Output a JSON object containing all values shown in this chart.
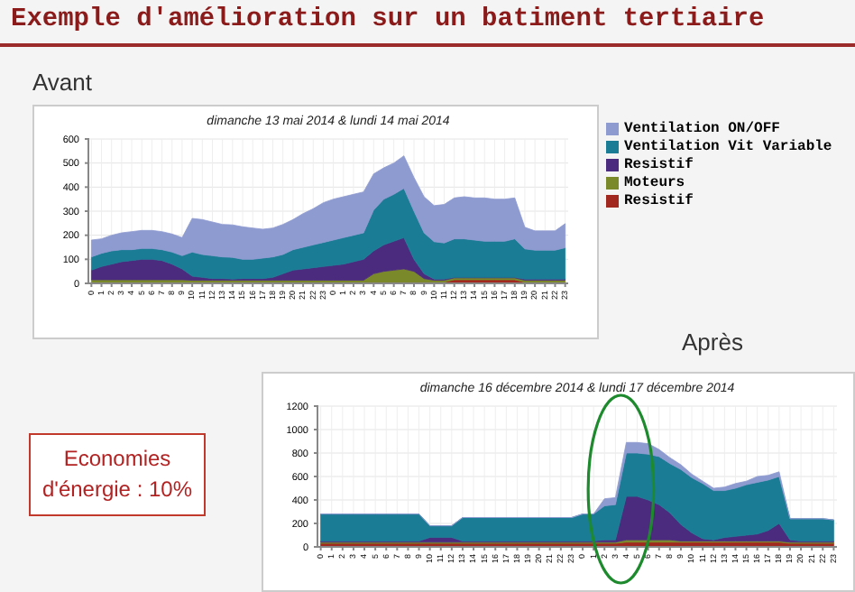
{
  "chart_data": [
    {
      "type": "other",
      "title": "Exemple d'amélioration sur un batiment tertiaire",
      "annotations": [
        "Avant",
        "Après",
        "Economies d'énergie : 10%"
      ]
    },
    {
      "type": "area",
      "stacked": true,
      "title": "dimanche 13 mai 2014 & lundi 14 mai 2014",
      "categories": [
        "0",
        "1",
        "2",
        "3",
        "4",
        "5",
        "6",
        "7",
        "8",
        "9",
        "10",
        "11",
        "12",
        "13",
        "14",
        "15",
        "16",
        "17",
        "18",
        "19",
        "20",
        "21",
        "22",
        "23",
        "0",
        "1",
        "2",
        "3",
        "4",
        "5",
        "6",
        "7",
        "8",
        "9",
        "10",
        "11",
        "12",
        "13",
        "14",
        "15",
        "16",
        "17",
        "18",
        "19",
        "20",
        "21",
        "22",
        "23"
      ],
      "ylim": [
        0,
        600
      ],
      "yticks": [
        0,
        100,
        200,
        300,
        400,
        500,
        600
      ],
      "grid": true,
      "legend": "right",
      "series": [
        {
          "name": "Resistif",
          "color": "#a0281e",
          "values": [
            0,
            0,
            0,
            0,
            0,
            0,
            0,
            0,
            0,
            0,
            5,
            5,
            5,
            5,
            5,
            5,
            5,
            5,
            5,
            5,
            5,
            5,
            5,
            5,
            5,
            5,
            5,
            5,
            5,
            5,
            5,
            5,
            5,
            5,
            5,
            5,
            15,
            15,
            15,
            15,
            15,
            15,
            15,
            5,
            5,
            5,
            5,
            5
          ]
        },
        {
          "name": "Moteurs",
          "color": "#7a8a2a",
          "values": [
            15,
            15,
            15,
            15,
            15,
            15,
            15,
            15,
            15,
            15,
            8,
            8,
            8,
            8,
            8,
            8,
            8,
            8,
            8,
            8,
            8,
            8,
            8,
            8,
            8,
            8,
            8,
            8,
            35,
            45,
            50,
            55,
            45,
            15,
            8,
            8,
            8,
            8,
            8,
            8,
            8,
            8,
            8,
            8,
            8,
            8,
            8,
            8
          ]
        },
        {
          "name": "Resistif",
          "color": "#4b2b7e",
          "values": [
            40,
            55,
            65,
            75,
            80,
            85,
            85,
            80,
            65,
            45,
            17,
            12,
            7,
            7,
            5,
            7,
            7,
            7,
            12,
            27,
            42,
            47,
            52,
            57,
            62,
            67,
            77,
            87,
            95,
            110,
            120,
            130,
            50,
            20,
            5,
            5,
            2,
            2,
            2,
            2,
            2,
            2,
            2,
            5,
            5,
            5,
            5,
            5
          ]
        },
        {
          "name": "Ventilation Vit Variable",
          "color": "#1a7c95",
          "values": [
            55,
            55,
            55,
            50,
            45,
            45,
            45,
            45,
            50,
            55,
            100,
            95,
            95,
            90,
            90,
            80,
            80,
            85,
            85,
            80,
            85,
            90,
            95,
            100,
            105,
            110,
            110,
            110,
            170,
            190,
            195,
            205,
            200,
            170,
            155,
            150,
            160,
            160,
            155,
            150,
            150,
            150,
            160,
            125,
            120,
            120,
            120,
            130
          ]
        },
        {
          "name": "Ventilation ON/OFF",
          "color": "#8e9bd0",
          "values": [
            70,
            60,
            65,
            70,
            75,
            75,
            75,
            75,
            75,
            75,
            140,
            145,
            140,
            135,
            135,
            135,
            130,
            120,
            120,
            125,
            125,
            140,
            150,
            165,
            170,
            170,
            170,
            170,
            150,
            130,
            130,
            135,
            140,
            150,
            150,
            160,
            170,
            175,
            175,
            180,
            175,
            175,
            170,
            90,
            80,
            80,
            80,
            100
          ]
        }
      ]
    },
    {
      "type": "area",
      "stacked": true,
      "title": "dimanche 16 décembre 2014 & lundi 17 décembre 2014",
      "categories": [
        "0",
        "1",
        "2",
        "3",
        "4",
        "5",
        "6",
        "7",
        "8",
        "9",
        "10",
        "11",
        "12",
        "13",
        "14",
        "15",
        "16",
        "17",
        "18",
        "19",
        "20",
        "21",
        "22",
        "23",
        "0",
        "1",
        "2",
        "3",
        "4",
        "5",
        "6",
        "7",
        "8",
        "9",
        "10",
        "11",
        "12",
        "13",
        "14",
        "15",
        "16",
        "17",
        "18",
        "19",
        "20",
        "21",
        "22",
        "23"
      ],
      "ylim": [
        0,
        1200
      ],
      "yticks": [
        0,
        200,
        400,
        600,
        800,
        1000,
        1200
      ],
      "grid": true,
      "series": [
        {
          "color": "#a0281e",
          "values": [
            30,
            30,
            30,
            30,
            30,
            30,
            30,
            30,
            30,
            30,
            30,
            30,
            30,
            30,
            30,
            30,
            30,
            30,
            30,
            30,
            30,
            30,
            30,
            30,
            30,
            30,
            30,
            30,
            40,
            40,
            40,
            40,
            40,
            40,
            40,
            40,
            40,
            40,
            40,
            40,
            40,
            40,
            40,
            30,
            30,
            30,
            30,
            30
          ]
        },
        {
          "color": "#7a8a2a",
          "values": [
            10,
            10,
            10,
            10,
            10,
            10,
            10,
            10,
            10,
            10,
            10,
            10,
            10,
            10,
            10,
            10,
            10,
            10,
            10,
            10,
            10,
            10,
            10,
            10,
            10,
            10,
            10,
            10,
            20,
            20,
            20,
            20,
            20,
            10,
            10,
            10,
            10,
            10,
            10,
            10,
            10,
            10,
            10,
            10,
            10,
            10,
            10,
            10
          ]
        },
        {
          "color": "#4b2b7e",
          "values": [
            10,
            10,
            10,
            10,
            10,
            10,
            10,
            10,
            10,
            10,
            40,
            40,
            40,
            10,
            10,
            10,
            10,
            10,
            10,
            10,
            10,
            10,
            10,
            10,
            10,
            10,
            20,
            20,
            370,
            370,
            340,
            300,
            230,
            140,
            70,
            20,
            10,
            30,
            40,
            50,
            60,
            90,
            150,
            20,
            10,
            10,
            10,
            10
          ]
        },
        {
          "color": "#1a7c95",
          "values": [
            230,
            230,
            230,
            230,
            230,
            230,
            230,
            230,
            230,
            230,
            100,
            100,
            100,
            200,
            200,
            200,
            200,
            200,
            200,
            200,
            200,
            200,
            200,
            200,
            230,
            230,
            290,
            300,
            370,
            370,
            390,
            410,
            420,
            470,
            470,
            470,
            420,
            400,
            410,
            430,
            440,
            430,
            400,
            180,
            190,
            190,
            190,
            180
          ]
        },
        {
          "color": "#8e9bd0",
          "values": [
            0,
            0,
            0,
            0,
            0,
            0,
            0,
            0,
            0,
            0,
            0,
            0,
            0,
            0,
            0,
            0,
            0,
            0,
            0,
            0,
            0,
            0,
            0,
            0,
            0,
            0,
            60,
            60,
            90,
            90,
            90,
            60,
            50,
            40,
            30,
            20,
            20,
            30,
            40,
            30,
            50,
            40,
            40,
            0,
            0,
            0,
            0,
            0
          ]
        }
      ]
    }
  ]
}
